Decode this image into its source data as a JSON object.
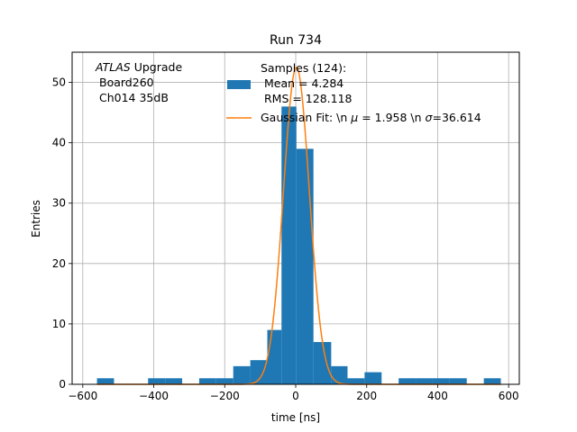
{
  "chart_data": {
    "type": "bar",
    "title": "Run 734",
    "xlabel": "time [ns]",
    "ylabel": "Entries",
    "xlim": [
      -630,
      630
    ],
    "ylim": [
      0,
      55
    ],
    "xticks": [
      -600,
      -400,
      -200,
      0,
      200,
      400,
      600
    ],
    "xtick_labels": [
      "−600",
      "−400",
      "−200",
      "0",
      "200",
      "400",
      "600"
    ],
    "yticks": [
      0,
      10,
      20,
      30,
      40,
      50
    ],
    "grid": true,
    "annotation": {
      "atlas": "ATLAS",
      "upgrade": " Upgrade",
      "line2": "Board260",
      "line3": "Ch014 35dB"
    },
    "legend": {
      "placement": "top-right",
      "hist_line1": "Samples (124):",
      "hist_line2": " Mean = 4.284",
      "hist_line3": " RMS = 128.118",
      "fit_prefix": "Gaussian Fit: \\n ",
      "fit_mu_sym": "μ",
      "fit_mid": " = 1.958 \\n ",
      "fit_sigma_sym": "σ",
      "fit_suffix": "=36.614"
    },
    "histogram": {
      "color": "#1f77b4",
      "bins": [
        {
          "x0": -560,
          "x1": -512,
          "count": 1
        },
        {
          "x0": -416,
          "x1": -368,
          "count": 1
        },
        {
          "x0": -368,
          "x1": -320,
          "count": 1
        },
        {
          "x0": -272,
          "x1": -224,
          "count": 1
        },
        {
          "x0": -224,
          "x1": -176,
          "count": 1
        },
        {
          "x0": -176,
          "x1": -128,
          "count": 3
        },
        {
          "x0": -128,
          "x1": -80,
          "count": 4
        },
        {
          "x0": -80,
          "x1": -40,
          "count": 9
        },
        {
          "x0": -40,
          "x1": 2,
          "count": 46
        },
        {
          "x0": 2,
          "x1": 50,
          "count": 39
        },
        {
          "x0": 50,
          "x1": 100,
          "count": 7
        },
        {
          "x0": 100,
          "x1": 146,
          "count": 3
        },
        {
          "x0": 146,
          "x1": 194,
          "count": 1
        },
        {
          "x0": 194,
          "x1": 242,
          "count": 2
        },
        {
          "x0": 290,
          "x1": 338,
          "count": 1
        },
        {
          "x0": 338,
          "x1": 386,
          "count": 1
        },
        {
          "x0": 386,
          "x1": 434,
          "count": 1
        },
        {
          "x0": 434,
          "x1": 482,
          "count": 1
        },
        {
          "x0": 530,
          "x1": 578,
          "count": 1
        }
      ]
    },
    "fit": {
      "color": "#ff7f0e",
      "amplitude": 52.5,
      "mu": 1.958,
      "sigma": 36.614,
      "x_range": [
        -560,
        578
      ]
    }
  }
}
